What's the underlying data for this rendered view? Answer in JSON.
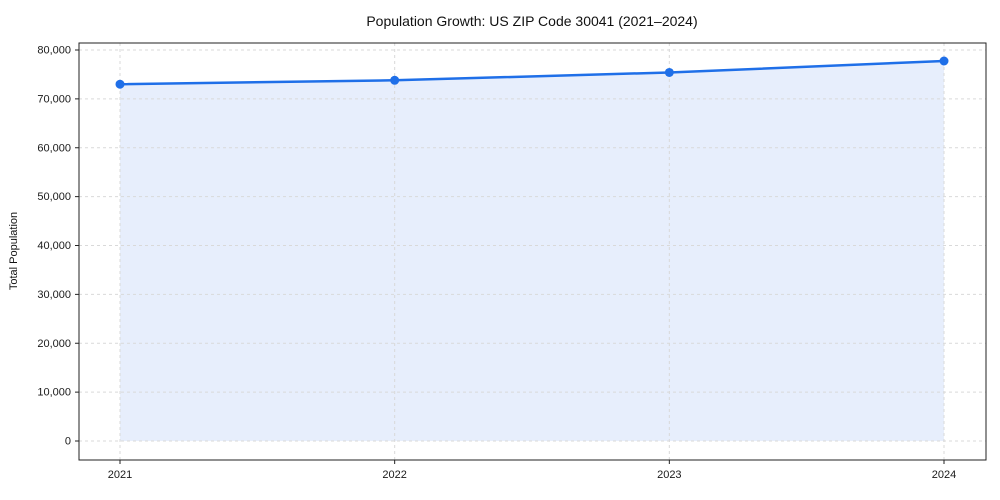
{
  "chart_data": {
    "type": "line",
    "title": "Population Growth: US ZIP Code 30041 (2021–2024)",
    "xlabel": "",
    "ylabel": "Total Population",
    "x": [
      "2021",
      "2022",
      "2023",
      "2024"
    ],
    "series": [
      {
        "name": "Total Population",
        "values": [
          73000,
          73800,
          75400,
          77750
        ]
      }
    ],
    "ylim": [
      0,
      80000
    ],
    "ytick_step": 10000,
    "ytick_labels": [
      "0",
      "10,000",
      "20,000",
      "30,000",
      "40,000",
      "50,000",
      "60,000",
      "70,000",
      "80,000"
    ],
    "xtick_labels": [
      "2021",
      "2022",
      "2023",
      "2024"
    ],
    "grid": true,
    "grid_style": "dashed",
    "legend": false,
    "area_fill": true,
    "marker": "circle",
    "colors": {
      "line": "#1f6fe8",
      "fill": "#e7eefc",
      "grid": "#d9d9d9",
      "spine": "#222222",
      "text": "#1a1a1a"
    }
  }
}
